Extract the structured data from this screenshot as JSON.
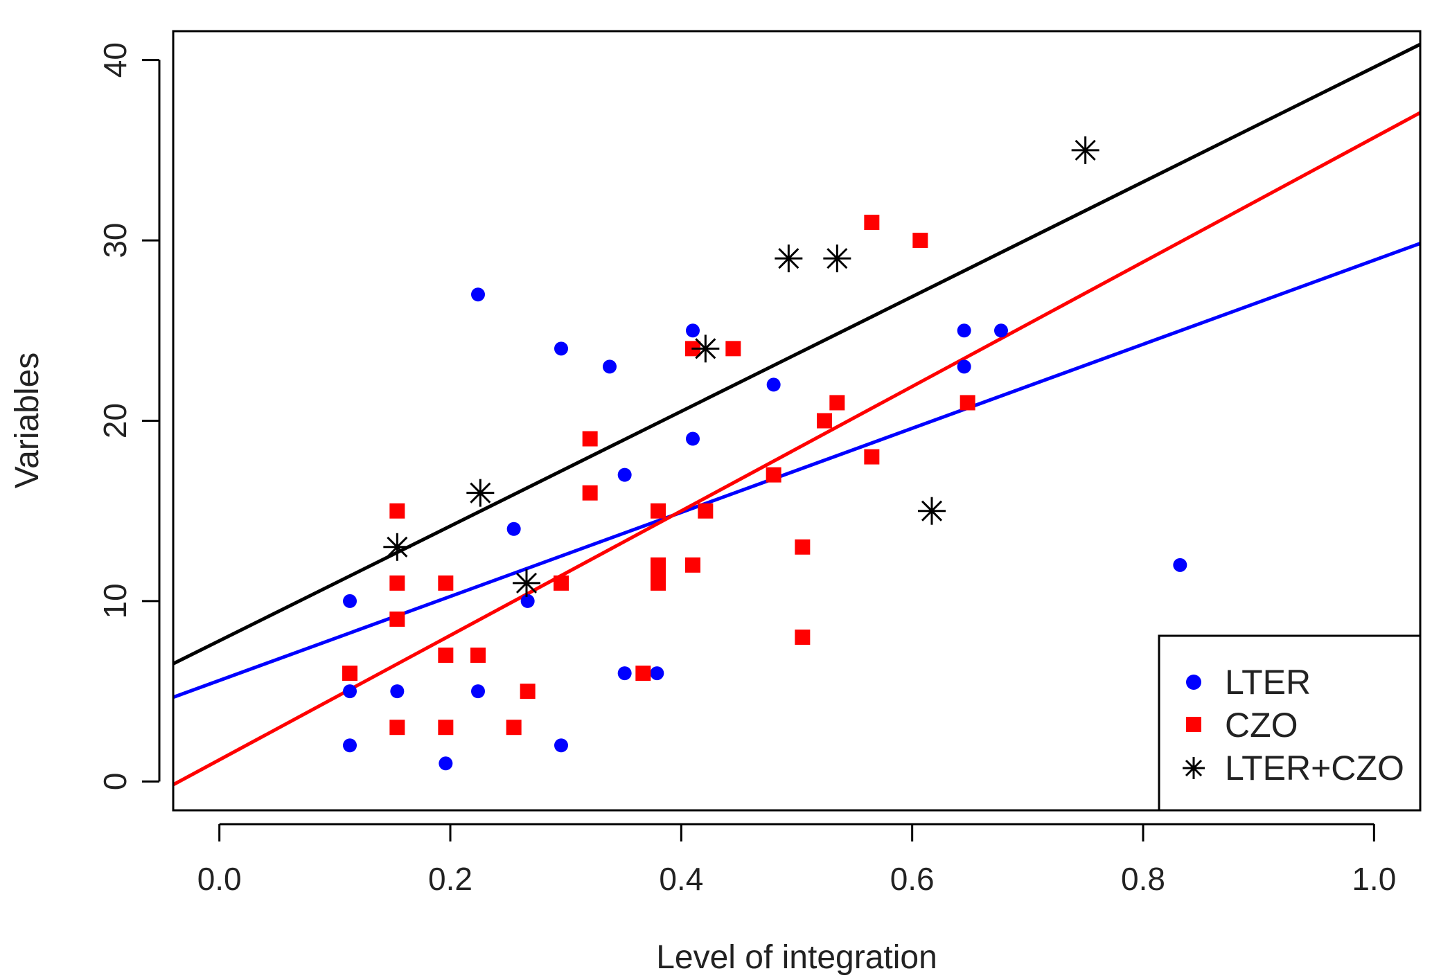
{
  "chart_data": {
    "type": "scatter",
    "title": "",
    "xlabel": "Level of integration",
    "ylabel": "Variables",
    "xlim": [
      -0.04,
      1.04
    ],
    "ylim": [
      -1.6,
      41.6
    ],
    "xticks": [
      0.0,
      0.2,
      0.4,
      0.6,
      0.8,
      1.0
    ],
    "xtick_labels": [
      "0.0",
      "0.2",
      "0.4",
      "0.6",
      "0.8",
      "1.0"
    ],
    "yticks": [
      0,
      10,
      20,
      30,
      40
    ],
    "ytick_labels": [
      "0",
      "10",
      "20",
      "30",
      "40"
    ],
    "legend_position": "bottom-right",
    "series": [
      {
        "name": "LTER",
        "color": "#0000ff",
        "marker": "circle",
        "points": [
          [
            0.113,
            2
          ],
          [
            0.113,
            5
          ],
          [
            0.113,
            10
          ],
          [
            0.154,
            5
          ],
          [
            0.196,
            1
          ],
          [
            0.224,
            27
          ],
          [
            0.224,
            5
          ],
          [
            0.255,
            14
          ],
          [
            0.267,
            10
          ],
          [
            0.296,
            24
          ],
          [
            0.296,
            2
          ],
          [
            0.338,
            23
          ],
          [
            0.351,
            17
          ],
          [
            0.351,
            6
          ],
          [
            0.379,
            6
          ],
          [
            0.41,
            25
          ],
          [
            0.41,
            19
          ],
          [
            0.48,
            22
          ],
          [
            0.645,
            25
          ],
          [
            0.645,
            23
          ],
          [
            0.677,
            25
          ],
          [
            0.832,
            12
          ]
        ],
        "fit": {
          "intercept": 5.6,
          "slope": 23.3
        }
      },
      {
        "name": "CZO",
        "color": "#ff0000",
        "marker": "square",
        "points": [
          [
            0.113,
            6
          ],
          [
            0.154,
            15
          ],
          [
            0.154,
            11
          ],
          [
            0.154,
            9
          ],
          [
            0.154,
            3
          ],
          [
            0.196,
            11
          ],
          [
            0.196,
            7
          ],
          [
            0.196,
            3
          ],
          [
            0.224,
            7
          ],
          [
            0.255,
            3
          ],
          [
            0.267,
            5
          ],
          [
            0.296,
            11
          ],
          [
            0.321,
            19
          ],
          [
            0.321,
            16
          ],
          [
            0.367,
            6
          ],
          [
            0.38,
            15
          ],
          [
            0.38,
            12
          ],
          [
            0.38,
            11.5
          ],
          [
            0.38,
            11
          ],
          [
            0.41,
            24
          ],
          [
            0.41,
            12
          ],
          [
            0.421,
            15
          ],
          [
            0.445,
            24
          ],
          [
            0.48,
            17
          ],
          [
            0.505,
            13
          ],
          [
            0.505,
            8
          ],
          [
            0.524,
            20
          ],
          [
            0.535,
            21
          ],
          [
            0.565,
            31
          ],
          [
            0.565,
            18
          ],
          [
            0.607,
            30
          ],
          [
            0.648,
            21
          ]
        ],
        "fit": {
          "intercept": 1.2,
          "slope": 34.5
        }
      },
      {
        "name": "LTER+CZO",
        "color": "#000000",
        "marker": "asterisk",
        "points": [
          [
            0.154,
            13
          ],
          [
            0.226,
            16
          ],
          [
            0.266,
            11
          ],
          [
            0.421,
            24
          ],
          [
            0.493,
            29
          ],
          [
            0.535,
            29
          ],
          [
            0.617,
            15
          ],
          [
            0.75,
            35
          ]
        ],
        "fit": {
          "intercept": 7.8,
          "slope": 31.8
        }
      }
    ]
  }
}
